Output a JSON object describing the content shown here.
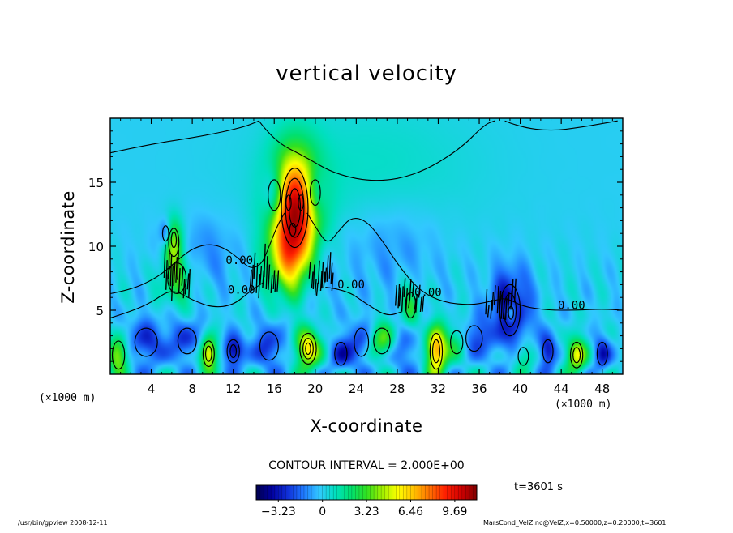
{
  "chart_data": {
    "type": "heatmap",
    "title": "vertical velocity",
    "xlabel": "X-coordinate",
    "ylabel": "Z-coordinate",
    "x_unit_label": "(×1000 m)",
    "x_unit_label_right": "(×1000 m)",
    "xlim": [
      0,
      50
    ],
    "ylim": [
      0,
      20
    ],
    "x_ticks": [
      {
        "value": 4,
        "label": "4"
      },
      {
        "value": 8,
        "label": "8"
      },
      {
        "value": 12,
        "label": "12"
      },
      {
        "value": 16,
        "label": "16"
      },
      {
        "value": 20,
        "label": "20"
      },
      {
        "value": 24,
        "label": "24"
      },
      {
        "value": 28,
        "label": "28"
      },
      {
        "value": 32,
        "label": "32"
      },
      {
        "value": 36,
        "label": "36"
      },
      {
        "value": 40,
        "label": "40"
      },
      {
        "value": 44,
        "label": "44"
      },
      {
        "value": 48,
        "label": "48"
      }
    ],
    "y_ticks": [
      {
        "value": 5,
        "label": "5"
      },
      {
        "value": 10,
        "label": "10"
      },
      {
        "value": 15,
        "label": "15"
      }
    ],
    "contour_interval": "CONTOUR INTERVAL = 2.000E+00",
    "contour_labels": [
      {
        "x": 12.6,
        "y": 8.6,
        "text": "0.00"
      },
      {
        "x": 12.8,
        "y": 6.3,
        "text": "0.00"
      },
      {
        "x": 23.5,
        "y": 6.7,
        "text": "0.00"
      },
      {
        "x": 31.0,
        "y": 6.1,
        "text": "0.00"
      },
      {
        "x": 45.0,
        "y": 5.1,
        "text": "0.00"
      }
    ],
    "colorbar": {
      "range": [
        -4.85,
        11.3
      ],
      "ticks": [
        {
          "value": -3.23,
          "label": "−3.23"
        },
        {
          "value": 0,
          "label": "0"
        },
        {
          "value": 3.23,
          "label": "3.23"
        },
        {
          "value": 6.46,
          "label": "6.46"
        },
        {
          "value": 9.69,
          "label": "9.69"
        }
      ],
      "colors": [
        "#000050",
        "#0000a0",
        "#1030d8",
        "#1e78ff",
        "#32c8ff",
        "#00e0c0",
        "#00e070",
        "#30e020",
        "#a0f000",
        "#ffff00",
        "#ffc000",
        "#ff7000",
        "#ff2000",
        "#d00000",
        "#800000"
      ]
    },
    "time_label": "t=3601 s",
    "features": [
      {
        "x": 18.0,
        "y": 13.0,
        "peak": 10.0,
        "sx": 1.7,
        "sy": 3.0
      },
      {
        "x": 17.6,
        "y": 9.0,
        "peak": 4.5,
        "sx": 1.5,
        "sy": 2.0
      },
      {
        "x": 16.0,
        "y": 14.0,
        "peak": -3.5,
        "sx": 0.8,
        "sy": 1.6
      },
      {
        "x": 20.0,
        "y": 14.2,
        "peak": -2.5,
        "sx": 0.8,
        "sy": 1.4
      },
      {
        "x": 6.2,
        "y": 10.3,
        "peak": 4.5,
        "sx": 0.7,
        "sy": 1.4
      },
      {
        "x": 5.4,
        "y": 11.0,
        "peak": -2.5,
        "sx": 0.4,
        "sy": 0.8
      },
      {
        "x": 39.0,
        "y": 5.0,
        "peak": -3.8,
        "sx": 1.4,
        "sy": 2.2
      },
      {
        "x": 39.1,
        "y": 4.8,
        "peak": 3.5,
        "sx": 0.35,
        "sy": 0.6
      },
      {
        "x": 19.3,
        "y": 2.0,
        "peak": 6.0,
        "sx": 0.9,
        "sy": 1.1
      },
      {
        "x": 31.8,
        "y": 1.8,
        "peak": 7.5,
        "sx": 0.7,
        "sy": 1.3
      },
      {
        "x": 9.6,
        "y": 1.6,
        "peak": 6.5,
        "sx": 0.6,
        "sy": 0.9
      },
      {
        "x": 12.0,
        "y": 1.8,
        "peak": -4.0,
        "sx": 0.7,
        "sy": 0.8
      },
      {
        "x": 45.5,
        "y": 1.5,
        "peak": 5.5,
        "sx": 0.7,
        "sy": 0.9
      },
      {
        "x": 0.8,
        "y": 1.5,
        "peak": 5.0,
        "sx": 0.7,
        "sy": 1.0
      },
      {
        "x": 42.7,
        "y": 1.8,
        "peak": -3.5,
        "sx": 0.6,
        "sy": 0.9
      },
      {
        "x": 48.0,
        "y": 1.6,
        "peak": -3.0,
        "sx": 0.6,
        "sy": 0.9
      },
      {
        "x": 26.5,
        "y": 2.6,
        "peak": 4.0,
        "sx": 1.0,
        "sy": 1.0
      },
      {
        "x": 24.5,
        "y": 2.5,
        "peak": -2.5,
        "sx": 0.9,
        "sy": 1.2
      },
      {
        "x": 35.5,
        "y": 2.8,
        "peak": -2.5,
        "sx": 1.0,
        "sy": 1.0
      },
      {
        "x": 28.5,
        "y": 2.0,
        "peak": -2.0,
        "sx": 1.2,
        "sy": 1.2
      },
      {
        "x": 15.5,
        "y": 2.2,
        "peak": -2.5,
        "sx": 1.2,
        "sy": 1.2
      },
      {
        "x": 22.5,
        "y": 1.6,
        "peak": -2.8,
        "sx": 0.8,
        "sy": 0.9
      },
      {
        "x": 3.5,
        "y": 2.5,
        "peak": -2.5,
        "sx": 1.5,
        "sy": 1.3
      },
      {
        "x": 7.5,
        "y": 2.6,
        "peak": -2.3,
        "sx": 1.2,
        "sy": 1.1
      },
      {
        "x": 33.8,
        "y": 2.5,
        "peak": 2.5,
        "sx": 0.8,
        "sy": 1.0
      },
      {
        "x": 40.3,
        "y": 1.4,
        "peak": 2.5,
        "sx": 0.7,
        "sy": 0.8
      },
      {
        "x": 6.5,
        "y": 7.5,
        "peak": 3.0,
        "sx": 1.2,
        "sy": 1.5
      },
      {
        "x": 8.5,
        "y": 9.5,
        "peak": -1.2,
        "sx": 2.8,
        "sy": 2.0
      },
      {
        "x": 29.3,
        "y": 5.4,
        "peak": 2.5,
        "sx": 0.7,
        "sy": 1.3
      },
      {
        "x": 27.5,
        "y": 10.0,
        "peak": -1.0,
        "sx": 3.5,
        "sy": 2.5
      },
      {
        "x": 20.0,
        "y": 8.5,
        "peak": -1.2,
        "sx": 1.2,
        "sy": 2.5
      },
      {
        "x": 25.0,
        "y": 16.0,
        "peak": 0.8,
        "sx": 8.0,
        "sy": 4.0
      }
    ],
    "contour_paths": [
      [
        [
          0,
          17.3
        ],
        [
          4,
          18.0
        ],
        [
          9,
          18.6
        ],
        [
          13,
          19.3
        ],
        [
          14.5,
          19.8
        ]
      ],
      [
        [
          14.5,
          19.8
        ],
        [
          16,
          18.2
        ],
        [
          19,
          17.0
        ],
        [
          22,
          15.6
        ],
        [
          26,
          15.0
        ],
        [
          30,
          15.6
        ],
        [
          34,
          17.5
        ],
        [
          36.5,
          19.5
        ],
        [
          37.5,
          19.8
        ]
      ],
      [
        [
          38.5,
          19.8
        ],
        [
          40,
          19.3
        ],
        [
          43,
          19.0
        ],
        [
          46,
          19.3
        ],
        [
          49.5,
          19.8
        ]
      ],
      [
        [
          0,
          6.3
        ],
        [
          2,
          6.6
        ],
        [
          4.2,
          7.4
        ],
        [
          5.6,
          8.2
        ],
        [
          6.8,
          9.1
        ],
        [
          8.2,
          9.9
        ],
        [
          9.8,
          10.2
        ],
        [
          11.3,
          9.8
        ],
        [
          12.6,
          9.0
        ],
        [
          13.7,
          8.2
        ],
        [
          14.8,
          8.6
        ],
        [
          15.5,
          10.0
        ],
        [
          16.3,
          11.6
        ],
        [
          17,
          12.6
        ]
      ],
      [
        [
          19.2,
          12.6
        ],
        [
          20.1,
          11.4
        ],
        [
          21.2,
          10.1
        ],
        [
          22.3,
          11.2
        ],
        [
          23.5,
          12.3
        ],
        [
          25,
          12.0
        ],
        [
          26.5,
          10.5
        ],
        [
          28.2,
          8.4
        ],
        [
          30.2,
          6.5
        ],
        [
          32.5,
          5.6
        ],
        [
          35.2,
          5.4
        ],
        [
          37.2,
          5.7
        ],
        [
          38.6,
          6.0
        ],
        [
          40.2,
          5.3
        ],
        [
          42.6,
          5.0
        ],
        [
          45.5,
          5.0
        ],
        [
          48,
          5.1
        ],
        [
          50,
          5.0
        ]
      ],
      [
        [
          0,
          4.4
        ],
        [
          2,
          4.9
        ],
        [
          4,
          5.6
        ],
        [
          6,
          6.7
        ],
        [
          8,
          5.8
        ],
        [
          10,
          5.2
        ],
        [
          12,
          5.4
        ],
        [
          13.5,
          6.4
        ],
        [
          15,
          7.2
        ]
      ],
      [
        [
          21,
          6.8
        ],
        [
          23,
          6.6
        ],
        [
          25,
          5.5
        ],
        [
          27,
          4.5
        ],
        [
          28.5,
          4.9
        ]
      ]
    ],
    "contour_rings": [
      {
        "x": 18.0,
        "y": 13.0,
        "rx": 1.3,
        "ry": 3.1
      },
      {
        "x": 18.0,
        "y": 13.0,
        "rx": 0.9,
        "ry": 2.3
      },
      {
        "x": 18.0,
        "y": 13.0,
        "rx": 0.55,
        "ry": 1.5
      },
      {
        "x": 17.4,
        "y": 13.4,
        "rx": 0.25,
        "ry": 0.6
      },
      {
        "x": 18.6,
        "y": 13.4,
        "rx": 0.25,
        "ry": 0.6
      },
      {
        "x": 17.8,
        "y": 11.3,
        "rx": 0.3,
        "ry": 0.5
      },
      {
        "x": 16.0,
        "y": 14.0,
        "rx": 0.6,
        "ry": 1.2
      },
      {
        "x": 20.0,
        "y": 14.2,
        "rx": 0.5,
        "ry": 1.0
      },
      {
        "x": 6.2,
        "y": 10.3,
        "rx": 0.5,
        "ry": 1.1
      },
      {
        "x": 6.2,
        "y": 10.5,
        "rx": 0.25,
        "ry": 0.6
      },
      {
        "x": 5.4,
        "y": 11.0,
        "rx": 0.3,
        "ry": 0.6
      },
      {
        "x": 19.3,
        "y": 2.0,
        "rx": 0.8,
        "ry": 1.2
      },
      {
        "x": 19.3,
        "y": 2.0,
        "rx": 0.5,
        "ry": 0.8
      },
      {
        "x": 19.3,
        "y": 2.0,
        "rx": 0.25,
        "ry": 0.45
      },
      {
        "x": 31.8,
        "y": 1.8,
        "rx": 0.6,
        "ry": 1.4
      },
      {
        "x": 31.8,
        "y": 1.8,
        "rx": 0.35,
        "ry": 0.9
      },
      {
        "x": 9.6,
        "y": 1.6,
        "rx": 0.55,
        "ry": 1.0
      },
      {
        "x": 9.6,
        "y": 1.6,
        "rx": 0.3,
        "ry": 0.6
      },
      {
        "x": 12.0,
        "y": 1.8,
        "rx": 0.6,
        "ry": 0.9
      },
      {
        "x": 12.0,
        "y": 1.8,
        "rx": 0.3,
        "ry": 0.5
      },
      {
        "x": 45.5,
        "y": 1.5,
        "rx": 0.6,
        "ry": 1.0
      },
      {
        "x": 45.5,
        "y": 1.5,
        "rx": 0.35,
        "ry": 0.6
      },
      {
        "x": 0.8,
        "y": 1.5,
        "rx": 0.6,
        "ry": 1.1
      },
      {
        "x": 42.7,
        "y": 1.8,
        "rx": 0.5,
        "ry": 0.9
      },
      {
        "x": 48.0,
        "y": 1.6,
        "rx": 0.5,
        "ry": 0.9
      },
      {
        "x": 26.5,
        "y": 2.6,
        "rx": 0.8,
        "ry": 1.0
      },
      {
        "x": 24.5,
        "y": 2.5,
        "rx": 0.7,
        "ry": 1.1
      },
      {
        "x": 35.5,
        "y": 2.8,
        "rx": 0.8,
        "ry": 1.0
      },
      {
        "x": 22.5,
        "y": 1.6,
        "rx": 0.6,
        "ry": 0.9
      },
      {
        "x": 15.5,
        "y": 2.2,
        "rx": 0.9,
        "ry": 1.1
      },
      {
        "x": 3.5,
        "y": 2.5,
        "rx": 1.1,
        "ry": 1.1
      },
      {
        "x": 7.5,
        "y": 2.6,
        "rx": 0.9,
        "ry": 1.0
      },
      {
        "x": 33.8,
        "y": 2.5,
        "rx": 0.6,
        "ry": 0.9
      },
      {
        "x": 40.3,
        "y": 1.4,
        "rx": 0.5,
        "ry": 0.7
      },
      {
        "x": 39.0,
        "y": 5.0,
        "rx": 1.0,
        "ry": 2.0
      },
      {
        "x": 39.0,
        "y": 5.0,
        "rx": 0.6,
        "ry": 1.3
      },
      {
        "x": 39.1,
        "y": 4.8,
        "rx": 0.25,
        "ry": 0.5
      },
      {
        "x": 29.3,
        "y": 5.4,
        "rx": 0.5,
        "ry": 1.0
      },
      {
        "x": 6.5,
        "y": 7.5,
        "rx": 0.9,
        "ry": 1.2
      }
    ],
    "contour_zigzags": [
      {
        "x0": 13.6,
        "x1": 16.4,
        "y0": 5.8,
        "y1": 9.6
      },
      {
        "x0": 19.4,
        "x1": 21.8,
        "y0": 6.0,
        "y1": 9.2
      },
      {
        "x0": 27.8,
        "x1": 30.6,
        "y0": 4.8,
        "y1": 7.6
      },
      {
        "x0": 36.6,
        "x1": 39.6,
        "y0": 4.2,
        "y1": 7.4
      },
      {
        "x0": 5.2,
        "x1": 7.8,
        "y0": 5.6,
        "y1": 9.6
      }
    ]
  },
  "footer": {
    "left": "/usr/bin/gpview   2008-12-11",
    "right": "MarsCond_VelZ.nc@VelZ,x=0:50000,z=0:20000,t=3601"
  }
}
